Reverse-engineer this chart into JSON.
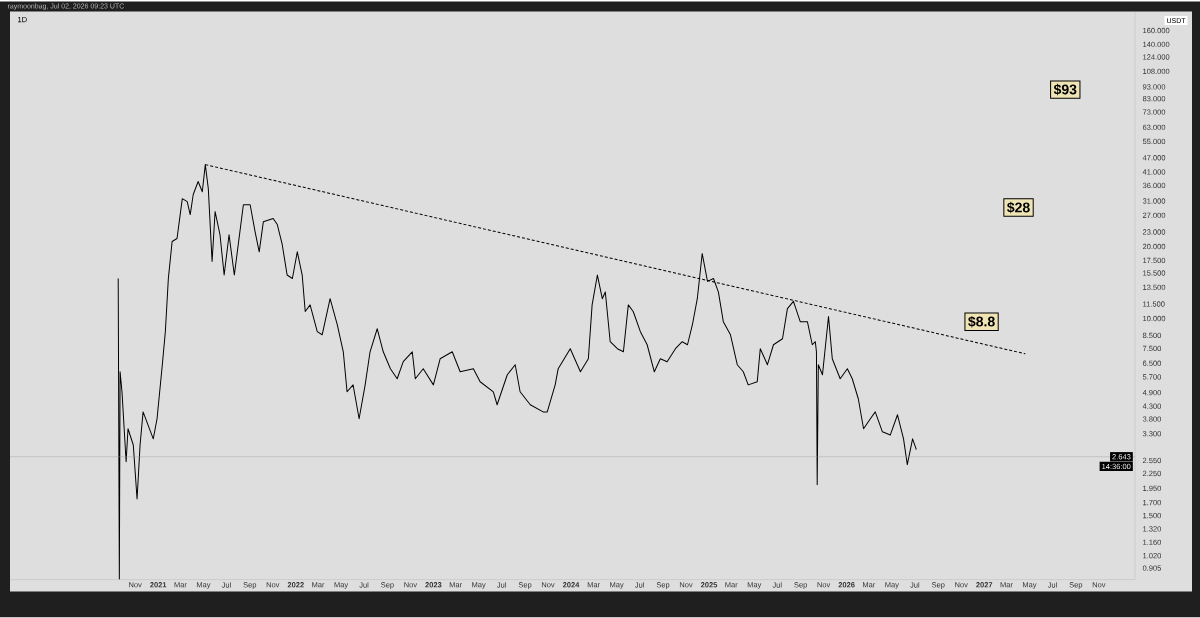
{
  "chart_data": {
    "type": "line",
    "title": "1D",
    "ylabel": "USDT",
    "log": "y",
    "grid": false,
    "marker": "none",
    "xlim": [
      "2019-12-05",
      "2028-02-05"
    ],
    "ylim": [
      0.81,
      192
    ],
    "xticks": [
      {
        "value": "2020-11-01",
        "label": "Nov"
      },
      {
        "value": "2021-01-01",
        "label": "2021"
      },
      {
        "value": "2021-03-01",
        "label": "Mar"
      },
      {
        "value": "2021-05-01",
        "label": "May"
      },
      {
        "value": "2021-07-01",
        "label": "Jul"
      },
      {
        "value": "2021-09-01",
        "label": "Sep"
      },
      {
        "value": "2021-11-01",
        "label": "Nov"
      },
      {
        "value": "2022-01-01",
        "label": "2022"
      },
      {
        "value": "2022-03-01",
        "label": "Mar"
      },
      {
        "value": "2022-05-01",
        "label": "May"
      },
      {
        "value": "2022-07-01",
        "label": "Jul"
      },
      {
        "value": "2022-09-01",
        "label": "Sep"
      },
      {
        "value": "2022-11-01",
        "label": "Nov"
      },
      {
        "value": "2023-01-01",
        "label": "2023"
      },
      {
        "value": "2023-03-01",
        "label": "Mar"
      },
      {
        "value": "2023-05-01",
        "label": "May"
      },
      {
        "value": "2023-07-01",
        "label": "Jul"
      },
      {
        "value": "2023-09-01",
        "label": "Sep"
      },
      {
        "value": "2023-11-01",
        "label": "Nov"
      },
      {
        "value": "2024-01-01",
        "label": "2024"
      },
      {
        "value": "2024-03-01",
        "label": "Mar"
      },
      {
        "value": "2024-05-01",
        "label": "May"
      },
      {
        "value": "2024-07-01",
        "label": "Jul"
      },
      {
        "value": "2024-09-01",
        "label": "Sep"
      },
      {
        "value": "2024-11-01",
        "label": "Nov"
      },
      {
        "value": "2025-01-01",
        "label": "2025"
      },
      {
        "value": "2025-03-01",
        "label": "Mar"
      },
      {
        "value": "2025-05-01",
        "label": "May"
      },
      {
        "value": "2025-07-01",
        "label": "Jul"
      },
      {
        "value": "2025-09-01",
        "label": "Sep"
      },
      {
        "value": "2025-11-01",
        "label": "Nov"
      },
      {
        "value": "2026-01-01",
        "label": "2026"
      },
      {
        "value": "2026-03-01",
        "label": "Mar"
      },
      {
        "value": "2026-05-01",
        "label": "May"
      },
      {
        "value": "2026-07-01",
        "label": "Jul"
      },
      {
        "value": "2026-09-01",
        "label": "Sep"
      },
      {
        "value": "2026-11-01",
        "label": "Nov"
      },
      {
        "value": "2027-01-01",
        "label": "2027"
      },
      {
        "value": "2027-03-01",
        "label": "Mar"
      },
      {
        "value": "2027-05-01",
        "label": "May"
      },
      {
        "value": "2027-07-01",
        "label": "Jul"
      },
      {
        "value": "2027-09-01",
        "label": "Sep"
      },
      {
        "value": "2027-11-01",
        "label": "Nov"
      }
    ],
    "yticks": [
      {
        "value": 160,
        "label": "160.000"
      },
      {
        "value": 140,
        "label": "140.000"
      },
      {
        "value": 124,
        "label": "124.000"
      },
      {
        "value": 108,
        "label": "108.000"
      },
      {
        "value": 93,
        "label": "93.000"
      },
      {
        "value": 83,
        "label": "83.000"
      },
      {
        "value": 73,
        "label": "73.000"
      },
      {
        "value": 63,
        "label": "63.000"
      },
      {
        "value": 55,
        "label": "55.000"
      },
      {
        "value": 47,
        "label": "47.000"
      },
      {
        "value": 41,
        "label": "41.000"
      },
      {
        "value": 36,
        "label": "36.000"
      },
      {
        "value": 31,
        "label": "31.000"
      },
      {
        "value": 27,
        "label": "27.000"
      },
      {
        "value": 23,
        "label": "23.000"
      },
      {
        "value": 20,
        "label": "20.000"
      },
      {
        "value": 17.5,
        "label": "17.500"
      },
      {
        "value": 15.5,
        "label": "15.500"
      },
      {
        "value": 13.5,
        "label": "13.500"
      },
      {
        "value": 11.5,
        "label": "11.500"
      },
      {
        "value": 10,
        "label": "10.000"
      },
      {
        "value": 8.5,
        "label": "8.500"
      },
      {
        "value": 7.5,
        "label": "7.500"
      },
      {
        "value": 6.5,
        "label": "6.500"
      },
      {
        "value": 5.7,
        "label": "5.700"
      },
      {
        "value": 4.9,
        "label": "4.900"
      },
      {
        "value": 4.3,
        "label": "4.300"
      },
      {
        "value": 3.8,
        "label": "3.800"
      },
      {
        "value": 3.3,
        "label": "3.300"
      },
      {
        "value": 2.55,
        "label": "2.550"
      },
      {
        "value": 2.25,
        "label": "2.250"
      },
      {
        "value": 1.95,
        "label": "1.950"
      },
      {
        "value": 1.7,
        "label": "1.700"
      },
      {
        "value": 1.5,
        "label": "1.500"
      },
      {
        "value": 1.32,
        "label": "1.320"
      },
      {
        "value": 1.16,
        "label": "1.160"
      },
      {
        "value": 1.02,
        "label": "1.020"
      },
      {
        "value": 0.905,
        "label": "0.905"
      }
    ],
    "series": [
      {
        "type": "line",
        "color": "#000000",
        "line_style": "solid",
        "x": [
          "2020-09-17",
          "2020-09-20",
          "2020-09-22",
          "2020-09-27",
          "2020-10-08",
          "2020-10-13",
          "2020-10-27",
          "2020-11-06",
          "2020-11-14",
          "2020-11-22",
          "2020-12-05",
          "2020-12-19",
          "2020-12-29",
          "2021-01-12",
          "2021-01-20",
          "2021-01-28",
          "2021-02-07",
          "2021-02-20",
          "2021-03-06",
          "2021-03-19",
          "2021-03-27",
          "2021-04-04",
          "2021-04-17",
          "2021-04-28",
          "2021-05-06",
          "2021-05-14",
          "2021-05-24",
          "2021-06-01",
          "2021-06-14",
          "2021-06-25",
          "2021-07-08",
          "2021-07-22",
          "2021-08-15",
          "2021-09-02",
          "2021-09-15",
          "2021-09-26",
          "2021-10-07",
          "2021-11-02",
          "2021-11-13",
          "2021-11-26",
          "2021-12-09",
          "2021-12-23",
          "2022-01-05",
          "2022-01-18",
          "2022-01-26",
          "2022-02-08",
          "2022-02-27",
          "2022-03-12",
          "2022-04-02",
          "2022-04-21",
          "2022-05-07",
          "2022-05-17",
          "2022-06-02",
          "2022-06-18",
          "2022-07-04",
          "2022-07-17",
          "2022-08-05",
          "2022-08-21",
          "2022-09-09",
          "2022-09-27",
          "2022-10-13",
          "2022-11-06",
          "2022-11-14",
          "2022-12-05",
          "2023-01-01",
          "2023-01-19",
          "2023-02-20",
          "2023-03-13",
          "2023-04-17",
          "2023-05-05",
          "2023-06-09",
          "2023-06-19",
          "2023-07-16",
          "2023-08-06",
          "2023-08-19",
          "2023-09-15",
          "2023-10-19",
          "2023-10-30",
          "2023-11-20",
          "2023-11-28",
          "2023-12-30",
          "2024-01-26",
          "2024-02-16",
          "2024-02-26",
          "2024-03-11",
          "2024-03-24",
          "2024-04-01",
          "2024-04-14",
          "2024-05-03",
          "2024-05-19",
          "2024-06-01",
          "2024-06-14",
          "2024-07-03",
          "2024-07-21",
          "2024-08-09",
          "2024-08-25",
          "2024-09-12",
          "2024-10-04",
          "2024-10-22",
          "2024-11-05",
          "2024-11-18",
          "2024-12-01",
          "2024-12-14",
          "2024-12-28",
          "2025-01-13",
          "2025-01-26",
          "2025-02-08",
          "2025-02-27",
          "2025-03-17",
          "2025-04-02",
          "2025-04-15",
          "2025-05-09",
          "2025-05-17",
          "2025-06-05",
          "2025-06-21",
          "2025-07-15",
          "2025-07-28",
          "2025-08-13",
          "2025-08-31",
          "2025-09-19",
          "2025-10-02",
          "2025-10-10",
          "2025-10-13",
          "2025-10-15",
          "2025-10-18",
          "2025-10-29",
          "2025-11-14",
          "2025-11-24",
          "2025-12-15",
          "2026-01-03",
          "2026-01-16",
          "2026-02-01",
          "2026-02-15",
          "2026-03-05",
          "2026-03-18",
          "2026-04-06",
          "2026-04-27",
          "2026-05-16",
          "2026-06-01",
          "2026-06-11",
          "2026-06-25",
          "2026-07-05"
        ],
        "values": [
          14.7,
          0.815,
          5.99,
          4.94,
          2.52,
          3.46,
          2.96,
          1.76,
          2.96,
          4.07,
          3.59,
          3.14,
          3.81,
          6.41,
          8.81,
          14.7,
          21.0,
          21.6,
          31.7,
          30.8,
          27.2,
          33.0,
          37.4,
          33.9,
          44.0,
          34.9,
          17.3,
          28.0,
          22.4,
          15.2,
          22.4,
          15.2,
          29.9,
          29.9,
          23.1,
          19.0,
          25.4,
          26.2,
          24.7,
          20.4,
          15.2,
          14.7,
          19.0,
          15.2,
          10.7,
          11.4,
          8.81,
          8.55,
          12.1,
          9.42,
          7.26,
          4.94,
          5.28,
          3.81,
          5.28,
          7.26,
          9.06,
          7.26,
          6.17,
          5.6,
          6.6,
          7.26,
          5.6,
          6.17,
          5.28,
          6.79,
          7.26,
          5.99,
          6.17,
          5.44,
          4.94,
          4.36,
          5.82,
          6.41,
          4.94,
          4.36,
          4.07,
          4.07,
          5.28,
          6.17,
          7.48,
          5.99,
          6.79,
          11.4,
          15.2,
          12.1,
          12.9,
          8.0,
          7.48,
          7.26,
          11.4,
          10.7,
          8.81,
          7.77,
          5.99,
          6.79,
          6.6,
          7.48,
          8.0,
          7.77,
          9.42,
          12.1,
          18.7,
          14.3,
          14.7,
          12.9,
          9.7,
          8.55,
          6.41,
          5.99,
          5.28,
          5.44,
          7.48,
          6.41,
          7.77,
          8.23,
          11.0,
          11.8,
          9.7,
          9.7,
          7.77,
          8.0,
          7.26,
          2.02,
          6.41,
          5.82,
          10.2,
          6.79,
          5.6,
          6.17,
          5.6,
          4.62,
          3.46,
          3.81,
          4.07,
          3.36,
          3.26,
          3.96,
          3.14,
          2.45,
          3.14,
          2.83
        ]
      },
      {
        "type": "line",
        "color": "#000000",
        "line_style": "dashed",
        "x": [
          "2021-05-06",
          "2027-04-20"
        ],
        "values": [
          44.0,
          7.12
        ]
      }
    ],
    "ref_lines": [
      {
        "axis": "y",
        "value": 2.643,
        "label": "2.643",
        "color": "#9a9a9a",
        "line_style": "solid"
      }
    ],
    "annotations": [
      "raymoonbag, Jul 02, 2026 09:23 UTC",
      "14:36:00",
      {
        "text": "$93",
        "x": "2027-08-04",
        "y": 90.6
      },
      {
        "text": "$28",
        "x": "2027-04-02",
        "y": 29.1
      },
      {
        "text": "$8.8",
        "x": "2026-12-25",
        "y": 9.7
      }
    ]
  }
}
